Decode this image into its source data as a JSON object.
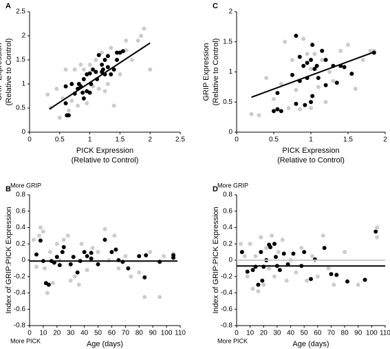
{
  "chart_data": [
    {
      "type": "scatter",
      "panel": "A",
      "xlabel": [
        "PICK Expression",
        "(Relative to Control)"
      ],
      "ylabel": [
        "GRIP Expression",
        "(Relative to Control)"
      ],
      "xlim": [
        0,
        2.5
      ],
      "xticks": [
        0,
        0.5,
        1,
        1.5,
        2,
        2.5
      ],
      "ylim": [
        0,
        2.5
      ],
      "yticks": [
        0,
        0.5,
        1,
        1.5,
        2,
        2.5
      ],
      "series": [
        {
          "color": "#cccccc",
          "x": [
            0.3,
            0.35,
            0.45,
            0.5,
            0.55,
            0.6,
            0.7,
            0.75,
            0.8,
            0.85,
            0.9,
            0.95,
            1.0,
            1.05,
            1.1,
            1.15,
            1.2,
            1.3,
            1.35,
            1.4,
            1.5,
            1.6,
            1.7,
            1.8,
            1.85,
            1.9,
            2.0,
            1.6,
            0.65,
            1.25
          ],
          "y": [
            0.78,
            0.5,
            0.9,
            0.3,
            0.7,
            1.3,
            0.65,
            1.3,
            0.55,
            1.4,
            1.3,
            0.6,
            1.4,
            0.95,
            1.5,
            0.9,
            1.65,
            1.0,
            1.75,
            0.55,
            1.2,
            1.7,
            1.5,
            1.9,
            2.0,
            2.15,
            1.3,
            1.9,
            0.45,
            0.85
          ]
        },
        {
          "color": "#000000",
          "x": [
            0.6,
            0.6,
            0.62,
            0.65,
            0.7,
            0.75,
            0.8,
            0.82,
            0.85,
            0.88,
            0.9,
            0.9,
            0.95,
            0.95,
            1.0,
            1.0,
            1.02,
            1.05,
            1.1,
            1.12,
            1.15,
            1.2,
            1.22,
            1.25,
            1.3,
            1.3,
            1.35,
            1.4,
            1.45,
            1.5,
            1.55,
            1.45,
            1.2,
            1.25
          ],
          "y": [
            0.95,
            0.6,
            0.35,
            0.35,
            1.0,
            0.8,
            0.9,
            1.0,
            0.95,
            0.82,
            1.1,
            0.7,
            1.2,
            0.85,
            1.22,
            0.82,
            1.0,
            1.3,
            1.25,
            1.1,
            1.6,
            1.25,
            1.3,
            1.5,
            1.35,
            1.58,
            1.2,
            1.3,
            1.5,
            1.65,
            1.68,
            1.65,
            1.4,
            1.2
          ]
        },
        {
          "mode": "line",
          "color": "#000000",
          "x": [
            0.33,
            2.0
          ],
          "y": [
            0.48,
            1.85
          ]
        }
      ]
    },
    {
      "type": "scatter",
      "panel": "B",
      "xlabel": [
        "Age (days)"
      ],
      "ylabel": [
        "Index of GRIP:PICK Expression"
      ],
      "annotations": [
        "More GRIP",
        "More PICK"
      ],
      "xlim": [
        0,
        110
      ],
      "xticks": [
        0,
        10,
        20,
        30,
        40,
        50,
        60,
        70,
        80,
        90,
        100,
        110
      ],
      "ylim": [
        -0.8,
        0.8
      ],
      "yticks": [
        0.8,
        0.6,
        0.4,
        0.2,
        0,
        -0.2,
        -0.4,
        -0.6,
        -0.8
      ],
      "series": [
        {
          "color": "#cccccc",
          "x": [
            3,
            5,
            7,
            8,
            10,
            11,
            13,
            15,
            17,
            20,
            22,
            25,
            28,
            30,
            33,
            36,
            38,
            42,
            46,
            50,
            55,
            58,
            62,
            65,
            70,
            74,
            80,
            84,
            88,
            95,
            98,
            105
          ],
          "y": [
            0.25,
            -0.08,
            0.3,
            0.4,
            0.35,
            -0.1,
            -0.4,
            0.1,
            -0.28,
            0.2,
            0.0,
            0.25,
            0.3,
            -0.25,
            -0.2,
            -0.3,
            0.2,
            -0.12,
            0.15,
            0.1,
            0.38,
            0.0,
            0.3,
            -0.1,
            0.05,
            -0.2,
            -0.15,
            -0.45,
            0.1,
            -0.45,
            0.05,
            0.08
          ]
        },
        {
          "color": "#000000",
          "x": [
            5,
            8,
            10,
            12,
            14,
            16,
            18,
            20,
            22,
            24,
            25,
            30,
            32,
            35,
            37,
            40,
            42,
            45,
            45,
            50,
            55,
            60,
            63,
            65,
            68,
            72,
            80,
            84,
            85,
            95,
            105,
            105
          ],
          "y": [
            0.07,
            0.24,
            -0.01,
            -0.28,
            -0.3,
            -0.01,
            -0.03,
            0.04,
            -0.06,
            0.1,
            0.16,
            -0.05,
            0.04,
            -0.15,
            -0.01,
            0.1,
            0.05,
            0.02,
            0.09,
            -0.05,
            0.25,
            0.1,
            0.13,
            0.0,
            -0.02,
            -0.1,
            0.05,
            -0.21,
            0.06,
            -0.02,
            0.03,
            0.06
          ]
        },
        {
          "mode": "line",
          "color": "#000000",
          "x": [
            0,
            108
          ],
          "y": [
            -0.01,
            -0.01
          ]
        }
      ]
    },
    {
      "type": "scatter",
      "panel": "C",
      "xlabel": [
        "PICK Expression",
        "(Relative to Control)"
      ],
      "ylabel": [
        "GRIP Expression",
        "(Relative to Control)"
      ],
      "xlim": [
        0,
        2
      ],
      "xticks": [
        0,
        0.5,
        1,
        1.5,
        2
      ],
      "ylim": [
        0,
        2
      ],
      "yticks": [
        0,
        0.5,
        1,
        1.5,
        2
      ],
      "series": [
        {
          "color": "#cccccc",
          "x": [
            0.2,
            0.3,
            0.4,
            0.5,
            0.6,
            0.65,
            0.7,
            0.75,
            0.8,
            0.85,
            0.9,
            0.95,
            1.0,
            1.05,
            1.1,
            1.15,
            1.2,
            1.25,
            1.3,
            1.4,
            1.5,
            1.6,
            1.7,
            1.8,
            1.85,
            1.0
          ],
          "y": [
            0.3,
            0.28,
            0.9,
            0.55,
            0.8,
            1.5,
            0.4,
            1.2,
            0.7,
            0.38,
            1.55,
            1.3,
            0.4,
            1.3,
            0.75,
            1.2,
            0.5,
            1.0,
            0.85,
            1.35,
            1.45,
            0.72,
            1.2,
            1.35,
            1.35,
            1.05
          ]
        },
        {
          "color": "#000000",
          "x": [
            0.5,
            0.55,
            0.6,
            0.55,
            0.8,
            0.8,
            0.85,
            0.85,
            0.9,
            0.92,
            0.95,
            0.95,
            1.0,
            1.02,
            1.02,
            1.05,
            1.08,
            1.1,
            1.15,
            1.2,
            1.2,
            1.3,
            1.35,
            1.4,
            1.45,
            1.55,
            1.85,
            0.75,
            1.0
          ],
          "y": [
            0.35,
            0.38,
            0.35,
            0.65,
            1.6,
            0.47,
            1.25,
            0.85,
            1.1,
            0.45,
            1.15,
            0.9,
            1.2,
            1.45,
            0.6,
            1.05,
            1.1,
            0.9,
            1.35,
            1.2,
            0.78,
            1.1,
            0.82,
            1.1,
            1.08,
            0.97,
            1.32,
            0.95,
            0.5
          ]
        },
        {
          "mode": "line",
          "color": "#000000",
          "x": [
            0.2,
            1.85
          ],
          "y": [
            0.58,
            1.33
          ]
        }
      ]
    },
    {
      "type": "scatter",
      "panel": "D",
      "xlabel": [
        "Age (days)"
      ],
      "ylabel": [
        "Index of GRIP:PICK Expression"
      ],
      "annotations": [
        "More GRIP",
        "More PICK"
      ],
      "xlim": [
        0,
        110
      ],
      "xticks": [
        0,
        10,
        20,
        30,
        40,
        50,
        60,
        70,
        80,
        90,
        100,
        110
      ],
      "ylim": [
        -0.8,
        0.8
      ],
      "yticks": [
        0.8,
        0.6,
        0.4,
        0.2,
        0,
        -0.2,
        -0.4,
        -0.6,
        -0.8
      ],
      "series": [
        {
          "color": "#cccccc",
          "x": [
            3,
            6,
            8,
            10,
            12,
            14,
            16,
            18,
            20,
            22,
            24,
            26,
            28,
            31,
            34,
            37,
            40,
            44,
            48,
            52,
            56,
            60,
            64,
            68,
            72,
            80,
            90,
            104,
            104
          ],
          "y": [
            0.2,
            0.05,
            -0.2,
            0.2,
            -0.35,
            0.05,
            -0.38,
            0.28,
            -0.3,
            0.15,
            -0.1,
            0.3,
            -0.2,
            0.1,
            0.25,
            -0.25,
            0.0,
            -0.15,
            0.15,
            -0.25,
            0.05,
            -0.2,
            0.3,
            -0.1,
            -0.3,
            0.1,
            -0.3,
            0.4,
            0.28
          ]
        },
        {
          "color": "#000000",
          "x": [
            4,
            8,
            12,
            14,
            16,
            18,
            19,
            20,
            22,
            24,
            25,
            28,
            29,
            30,
            32,
            35,
            38,
            42,
            48,
            50,
            55,
            58,
            65,
            70,
            74,
            82,
            95,
            103
          ],
          "y": [
            0.1,
            -0.14,
            -0.12,
            -0.08,
            -0.3,
            0.1,
            -0.25,
            -0.08,
            0.0,
            0.19,
            0.16,
            0.2,
            0.04,
            -0.07,
            -0.12,
            0.08,
            -0.05,
            0.08,
            -0.07,
            0.1,
            -0.23,
            0.01,
            0.15,
            -0.17,
            -0.18,
            -0.26,
            -0.24,
            0.35
          ]
        },
        {
          "mode": "line",
          "color": "#cccccc",
          "x": [
            0,
            110
          ],
          "y": [
            0,
            0
          ]
        },
        {
          "mode": "line",
          "color": "#000000",
          "x": [
            0,
            110
          ],
          "y": [
            -0.07,
            -0.07
          ]
        }
      ]
    }
  ]
}
